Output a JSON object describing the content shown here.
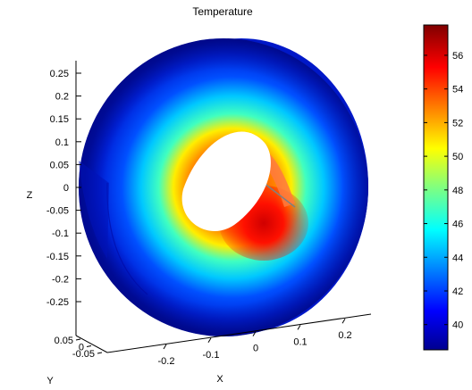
{
  "chart_data": {
    "type": "heatmap",
    "title": "Temperature",
    "xlabel": "X",
    "ylabel": "Y",
    "zlabel": "Z",
    "x_ticks": [
      "-0.2",
      "-0.1",
      "0",
      "0.1",
      "0.2"
    ],
    "y_ticks": [
      "0.05",
      "0",
      "-0.05"
    ],
    "z_ticks": [
      "0.25",
      "0.2",
      "0.15",
      "0.1",
      "0.05",
      "0",
      "-0.05",
      "-0.1",
      "-0.15",
      "-0.2",
      "-0.25"
    ],
    "colorbar": {
      "colormap": "jet",
      "range": [
        38.5,
        57.8
      ],
      "ticks": [
        "56",
        "54",
        "52",
        "50",
        "48",
        "46",
        "44",
        "42",
        "40"
      ],
      "tick_values": [
        56,
        54,
        52,
        50,
        48,
        46,
        44,
        42,
        40
      ]
    },
    "grid": false
  }
}
